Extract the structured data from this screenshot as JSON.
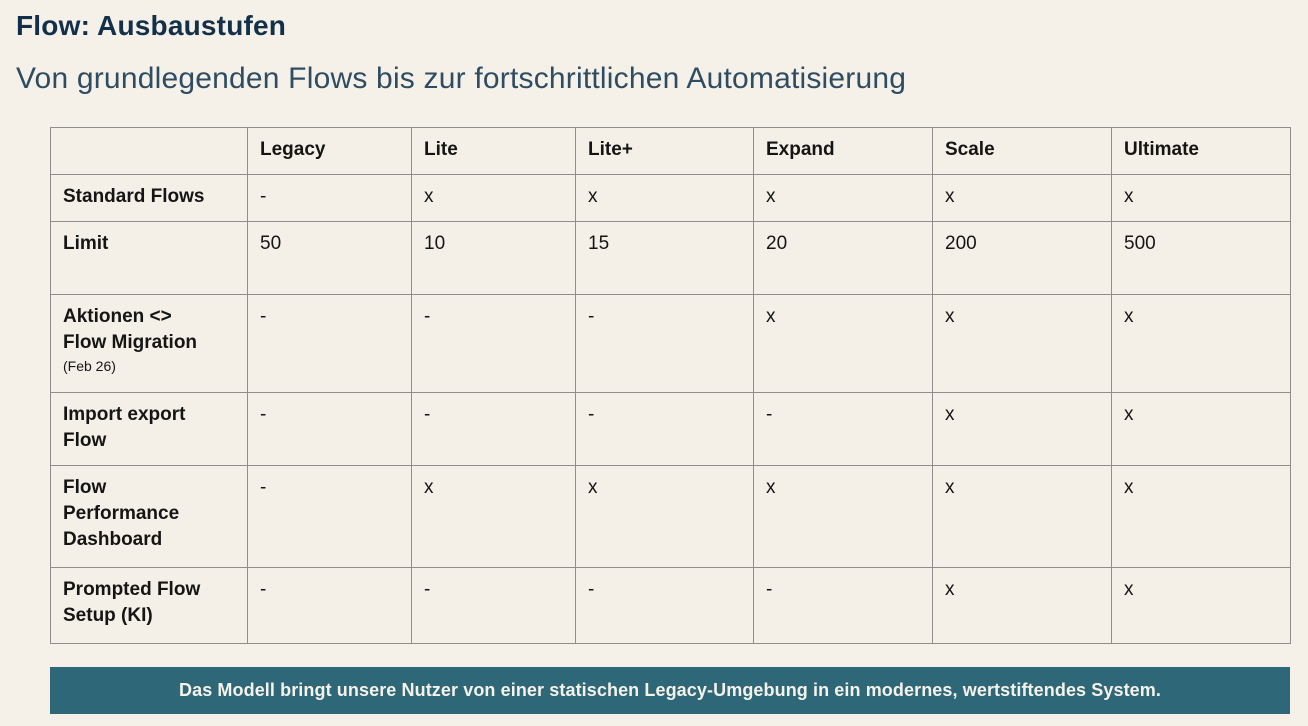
{
  "header": {
    "title": "Flow: Ausbaustufen",
    "subtitle": "Von grundlegenden Flows bis zur fortschrittlichen Automatisierung"
  },
  "table": {
    "columns": [
      "Legacy",
      "Lite",
      "Lite+",
      "Expand",
      "Scale",
      "Ultimate"
    ],
    "rows": [
      {
        "label": "Standard Flows",
        "note": "",
        "values": [
          "-",
          "x",
          "x",
          "x",
          "x",
          "x"
        ]
      },
      {
        "label": "Limit",
        "note": "",
        "values": [
          "50",
          "10",
          "15",
          "20",
          "200",
          "500"
        ]
      },
      {
        "label": "Aktionen <>\nFlow Migration",
        "note": "(Feb 26)",
        "values": [
          "-",
          "-",
          "-",
          "x",
          "x",
          "x"
        ]
      },
      {
        "label": "Import export\nFlow",
        "note": "",
        "values": [
          "-",
          "-",
          "-",
          "-",
          "x",
          "x"
        ]
      },
      {
        "label": "Flow\nPerformance\nDashboard",
        "note": "",
        "values": [
          "-",
          "x",
          "x",
          "x",
          "x",
          "x"
        ]
      },
      {
        "label": "Prompted Flow\nSetup (KI)",
        "note": "",
        "values": [
          "-",
          "-",
          "-",
          "-",
          "x",
          "x"
        ]
      }
    ]
  },
  "banner": {
    "text": "Das Modell bringt unsere Nutzer von einer statischen Legacy-Umgebung in ein modernes, wertstiftendes System."
  },
  "colors": {
    "page_bg": "#f5f1e9",
    "cell_bg": "#f4f0e8",
    "table_border": "#8e8e8e",
    "title_text": "#13304a",
    "subtitle_text": "#2e4c62",
    "body_text": "#151515",
    "banner_bg": "#2e6878",
    "banner_text": "#f6f2ea"
  }
}
